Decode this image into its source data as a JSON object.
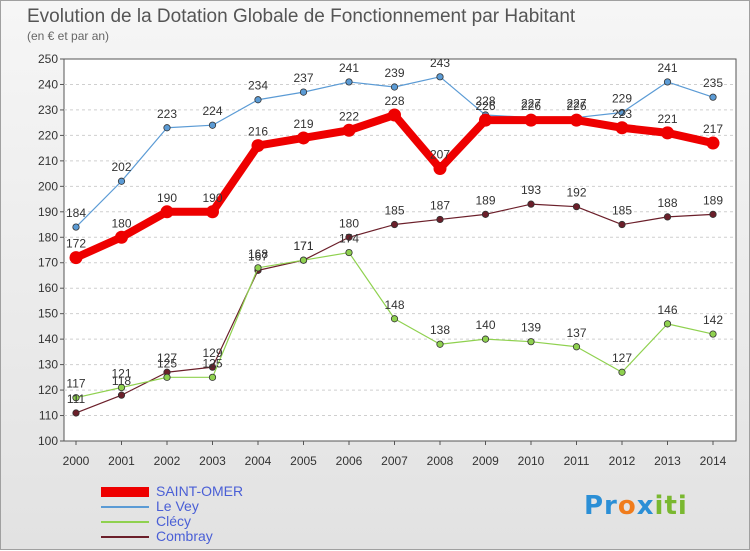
{
  "title": "Evolution de la Dotation Globale de Fonctionnement par Habitant",
  "subtitle": "(en € et par an)",
  "logo_text": "Proxiti",
  "chart_data": {
    "type": "line",
    "title": "Evolution de la Dotation Globale de Fonctionnement par Habitant",
    "subtitle": "(en € et par an)",
    "x": [
      "2000",
      "2001",
      "2002",
      "2003",
      "2004",
      "2005",
      "2006",
      "2007",
      "2008",
      "2009",
      "2010",
      "2011",
      "2012",
      "2013",
      "2014"
    ],
    "y_ticks": [
      "100",
      "110",
      "120",
      "130",
      "140",
      "150",
      "160",
      "170",
      "180",
      "190",
      "200",
      "210",
      "220",
      "230",
      "240",
      "250"
    ],
    "ylim": [
      100,
      250
    ],
    "grid": "horizontal dashed",
    "legend_position": "bottom-left",
    "series": [
      {
        "name": "SAINT-OMER",
        "color": "#ee0000",
        "values": [
          172,
          180,
          190,
          190,
          216,
          219,
          222,
          228,
          207,
          226,
          226,
          226,
          223,
          221,
          217
        ]
      },
      {
        "name": "Le Vey",
        "color": "#5b9bd5",
        "values": [
          184,
          202,
          223,
          224,
          234,
          237,
          241,
          239,
          243,
          228,
          227,
          227,
          229,
          241,
          235
        ]
      },
      {
        "name": "Clécy",
        "color": "#8fd14f",
        "values": [
          117,
          121,
          125,
          125,
          168,
          171,
          174,
          148,
          138,
          140,
          139,
          137,
          127,
          146,
          142
        ]
      },
      {
        "name": "Combray",
        "color": "#6b1f2a",
        "values": [
          111,
          118,
          127,
          129,
          167,
          171,
          180,
          185,
          187,
          189,
          193,
          192,
          185,
          188,
          189
        ]
      }
    ]
  }
}
